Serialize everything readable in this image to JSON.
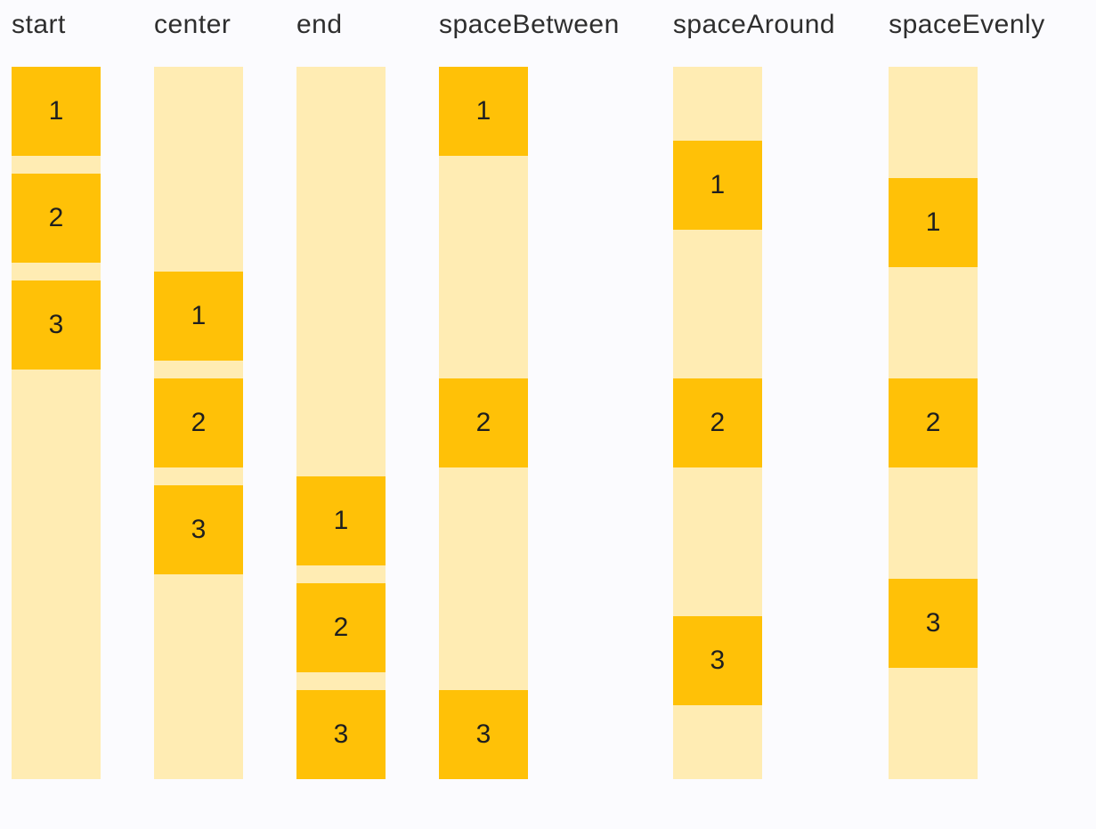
{
  "colors": {
    "background": "#FBFBFE",
    "track": "#FFECB3",
    "box": "#FFC107",
    "label_text": "#2E2E2E",
    "number_text": "#1F1F1F"
  },
  "columns": [
    {
      "label": "start",
      "items": [
        "1",
        "2",
        "3"
      ]
    },
    {
      "label": "center",
      "items": [
        "1",
        "2",
        "3"
      ]
    },
    {
      "label": "end",
      "items": [
        "1",
        "2",
        "3"
      ]
    },
    {
      "label": "spaceBetween",
      "items": [
        "1",
        "2",
        "3"
      ]
    },
    {
      "label": "spaceAround",
      "items": [
        "1",
        "2",
        "3"
      ]
    },
    {
      "label": "spaceEvenly",
      "items": [
        "1",
        "2",
        "3"
      ]
    }
  ]
}
